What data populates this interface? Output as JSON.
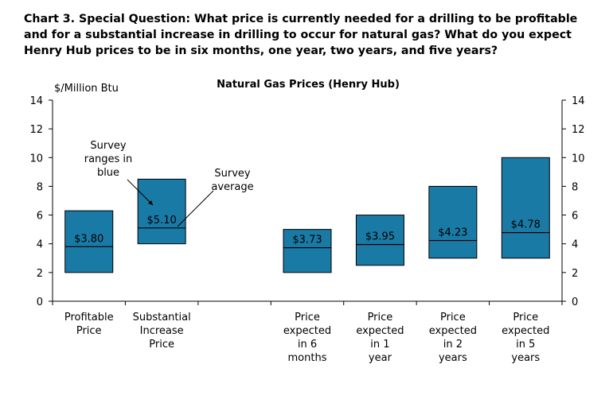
{
  "heading": "Chart 3. Special Question: What price is currently needed for a drilling to be profitable and for a substantial increase in drilling to occur for natural gas? What do you expect Henry Hub prices to be in six months, one year, two years, and five years?",
  "chart_data": {
    "type": "bar",
    "title": "Natural Gas Prices (Henry Hub)",
    "ylabel": "$/Million Btu",
    "ylim": [
      0,
      14
    ],
    "yticks": [
      0,
      2,
      4,
      6,
      8,
      10,
      12,
      14
    ],
    "secondary_y_axis": true,
    "grid": false,
    "bar_color": "#1a7aa6",
    "categories": [
      {
        "lines": [
          "Profitable",
          "Price"
        ]
      },
      {
        "lines": [
          "Substantial",
          "Increase",
          "Price"
        ]
      },
      {
        "lines": []
      },
      {
        "lines": [
          "Price",
          "expected",
          "in 6",
          "months"
        ]
      },
      {
        "lines": [
          "Price",
          "expected",
          "in 1",
          "year"
        ]
      },
      {
        "lines": [
          "Price",
          "expected",
          "in 2",
          "years"
        ]
      },
      {
        "lines": [
          "Price",
          "expected",
          "in 5",
          "years"
        ]
      }
    ],
    "ranges": [
      {
        "low": 2.0,
        "high": 6.3,
        "average": 3.8,
        "label": "$3.80"
      },
      {
        "low": 4.0,
        "high": 8.5,
        "average": 5.1,
        "label": "$5.10"
      },
      null,
      {
        "low": 2.0,
        "high": 5.0,
        "average": 3.73,
        "label": "$3.73"
      },
      {
        "low": 2.5,
        "high": 6.0,
        "average": 3.95,
        "label": "$3.95"
      },
      {
        "low": 3.0,
        "high": 8.0,
        "average": 4.23,
        "label": "$4.23"
      },
      {
        "low": 3.0,
        "high": 10.0,
        "average": 4.78,
        "label": "$4.78"
      }
    ],
    "annotations": [
      {
        "lines": [
          "Survey",
          "ranges in",
          "blue"
        ]
      },
      {
        "lines": [
          "Survey",
          "average"
        ]
      }
    ]
  }
}
